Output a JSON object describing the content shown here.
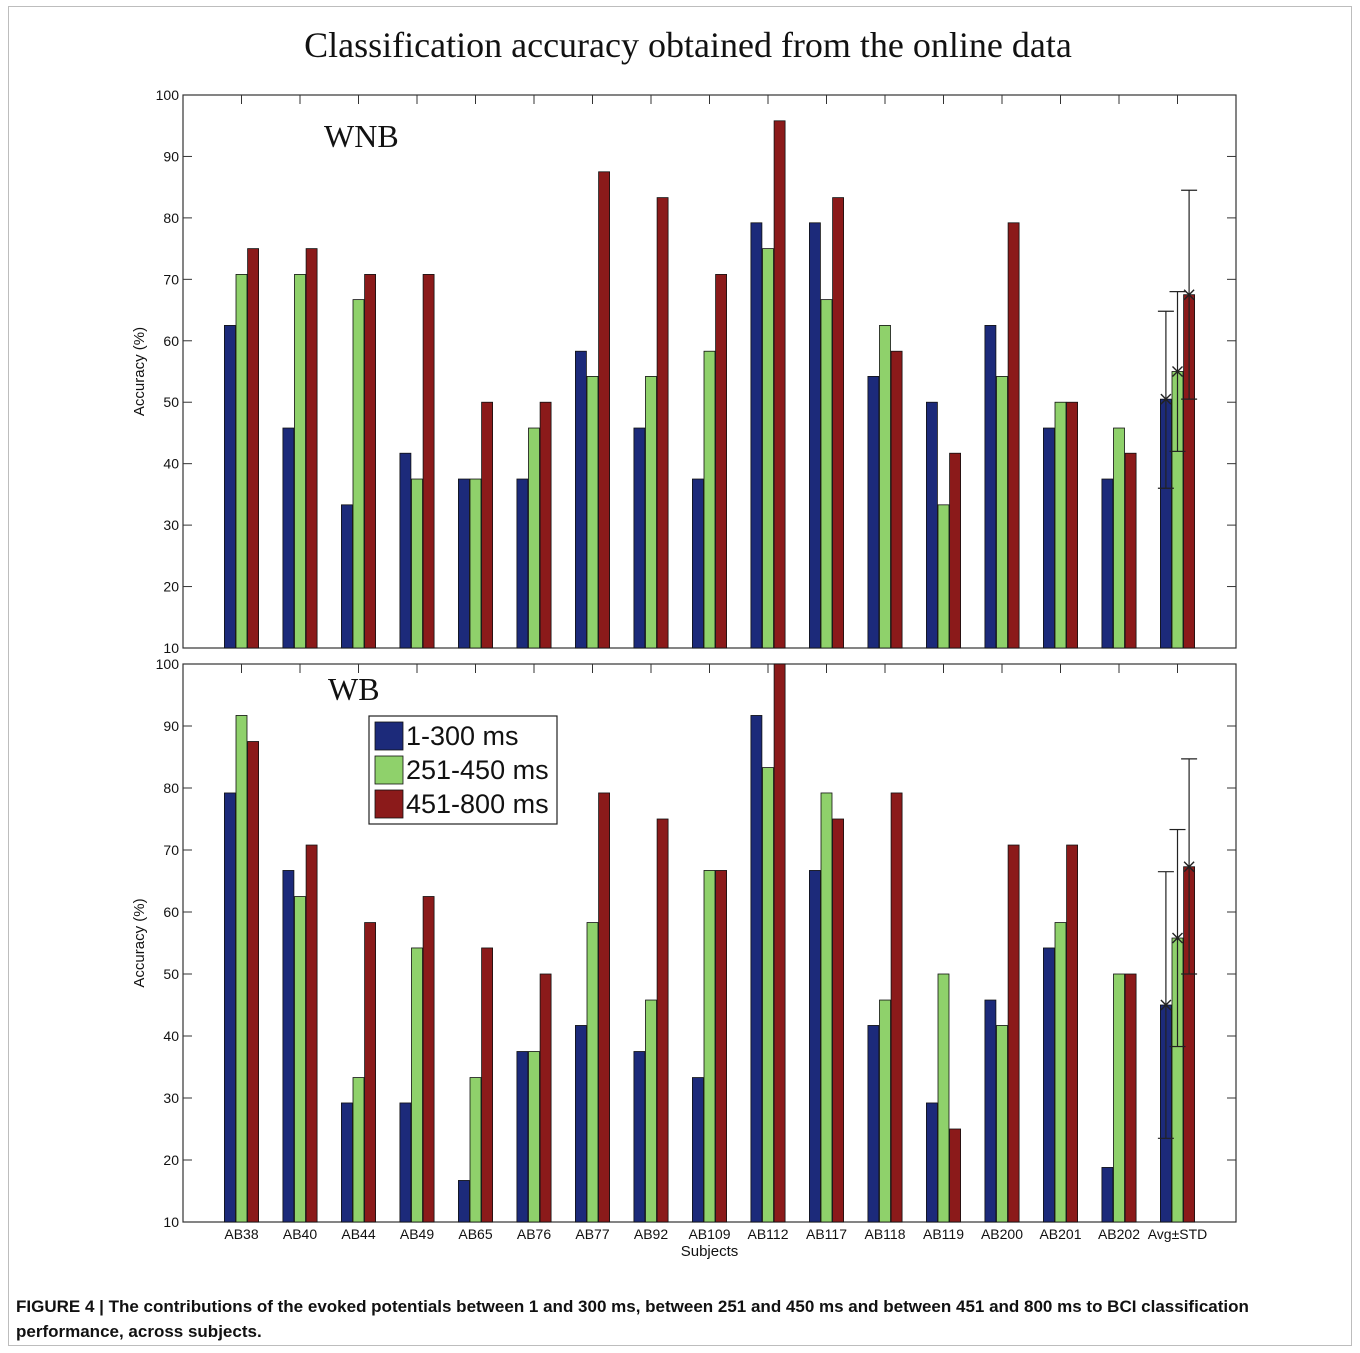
{
  "chart_data": [
    {
      "type": "bar",
      "panel": "WNB",
      "title": "Classification accuracy obtained from the online data",
      "ylabel": "Accuracy (%)",
      "xlabel": "",
      "ylim": [
        10,
        100
      ],
      "yticks": [
        10,
        20,
        30,
        40,
        50,
        60,
        70,
        80,
        90,
        100
      ],
      "categories": [
        "AB38",
        "AB40",
        "AB44",
        "AB49",
        "AB65",
        "AB76",
        "AB77",
        "AB92",
        "AB109",
        "AB112",
        "AB117",
        "AB118",
        "AB119",
        "AB200",
        "AB201",
        "AB202",
        "Avg±STD"
      ],
      "series": [
        {
          "name": "1-300 ms",
          "color": "#1c2a7a",
          "values": [
            62.5,
            45.8,
            33.3,
            41.7,
            37.5,
            37.5,
            58.3,
            45.8,
            37.5,
            79.2,
            79.2,
            54.2,
            50.0,
            62.5,
            45.8,
            37.5,
            50.5
          ],
          "error": [
            null,
            null,
            null,
            null,
            null,
            null,
            null,
            null,
            null,
            null,
            null,
            null,
            null,
            null,
            null,
            null,
            [
              36.0,
              64.8
            ]
          ]
        },
        {
          "name": "251-450 ms",
          "color": "#8fd16b",
          "values": [
            70.8,
            70.8,
            66.7,
            37.5,
            37.5,
            45.8,
            54.2,
            54.2,
            58.3,
            75.0,
            66.7,
            62.5,
            33.3,
            54.2,
            50.0,
            45.8,
            55.0
          ],
          "error": [
            null,
            null,
            null,
            null,
            null,
            null,
            null,
            null,
            null,
            null,
            null,
            null,
            null,
            null,
            null,
            null,
            [
              42.0,
              68.0
            ]
          ]
        },
        {
          "name": "451-800 ms",
          "color": "#8b1a1a",
          "values": [
            75.0,
            75.0,
            70.8,
            70.8,
            50.0,
            50.0,
            87.5,
            83.3,
            70.8,
            95.8,
            83.3,
            58.3,
            41.7,
            79.2,
            50.0,
            41.7,
            67.5
          ],
          "error": [
            null,
            null,
            null,
            null,
            null,
            null,
            null,
            null,
            null,
            null,
            null,
            null,
            null,
            null,
            null,
            null,
            [
              50.5,
              84.5
            ]
          ]
        }
      ],
      "grid": false
    },
    {
      "type": "bar",
      "panel": "WB",
      "ylabel": "Accuracy (%)",
      "xlabel": "Subjects",
      "ylim": [
        10,
        100
      ],
      "yticks": [
        10,
        20,
        30,
        40,
        50,
        60,
        70,
        80,
        90,
        100
      ],
      "categories": [
        "AB38",
        "AB40",
        "AB44",
        "AB49",
        "AB65",
        "AB76",
        "AB77",
        "AB92",
        "AB109",
        "AB112",
        "AB117",
        "AB118",
        "AB119",
        "AB200",
        "AB201",
        "AB202",
        "Avg±STD"
      ],
      "series": [
        {
          "name": "1-300 ms",
          "color": "#1c2a7a",
          "values": [
            79.2,
            66.7,
            29.2,
            29.2,
            16.7,
            37.5,
            41.7,
            37.5,
            33.3,
            91.7,
            66.7,
            41.7,
            29.2,
            45.8,
            54.2,
            18.8,
            45.0
          ],
          "error": [
            null,
            null,
            null,
            null,
            null,
            null,
            null,
            null,
            null,
            null,
            null,
            null,
            null,
            null,
            null,
            null,
            [
              23.5,
              66.5
            ]
          ]
        },
        {
          "name": "251-450 ms",
          "color": "#8fd16b",
          "values": [
            91.7,
            62.5,
            33.3,
            54.2,
            33.3,
            37.5,
            58.3,
            45.8,
            66.7,
            83.3,
            79.2,
            45.8,
            50.0,
            41.7,
            58.3,
            50.0,
            55.8
          ],
          "error": [
            null,
            null,
            null,
            null,
            null,
            null,
            null,
            null,
            null,
            null,
            null,
            null,
            null,
            null,
            null,
            null,
            [
              38.3,
              73.3
            ]
          ]
        },
        {
          "name": "451-800 ms",
          "color": "#8b1a1a",
          "values": [
            87.5,
            70.8,
            58.3,
            62.5,
            54.2,
            50.0,
            79.2,
            75.0,
            66.7,
            100.0,
            75.0,
            79.2,
            25.0,
            70.8,
            70.8,
            50.0,
            67.3
          ],
          "error": [
            null,
            null,
            null,
            null,
            null,
            null,
            null,
            null,
            null,
            null,
            null,
            null,
            null,
            null,
            null,
            null,
            [
              50.0,
              84.7
            ]
          ]
        }
      ],
      "legend": {
        "position": "upper-left",
        "entries": [
          "1-300 ms",
          "251-450 ms",
          "451-800 ms"
        ]
      },
      "grid": false
    }
  ],
  "caption": {
    "text": "FIGURE 4 | The contributions of the evoked potentials between 1 and 300 ms, between 251 and 450 ms and between 451 and 800 ms to BCI classification performance, across subjects."
  }
}
